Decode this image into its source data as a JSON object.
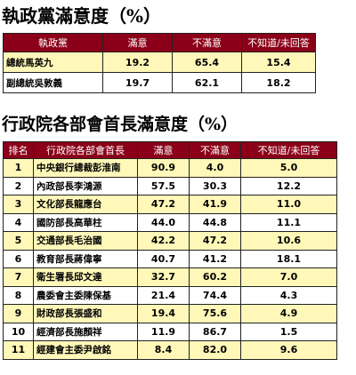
{
  "section1": {
    "title": "執政黨滿意度（%）",
    "headers": [
      "執政黨",
      "滿意",
      "不滿意",
      "不知道/未回答"
    ],
    "rows": [
      {
        "name": "總統馬英九",
        "satisfied": "19.2",
        "unsatisfied": "65.4",
        "unknown": "15.4"
      },
      {
        "name": "副總統吳敦義",
        "satisfied": "19.7",
        "unsatisfied": "62.1",
        "unknown": "18.2"
      }
    ]
  },
  "section2": {
    "title": "行政院各部會首長滿意度（%）",
    "headers": [
      "排名",
      "行政院各部會首長",
      "滿意",
      "不滿意",
      "不知道/未回答"
    ],
    "rows": [
      {
        "rank": "1",
        "name": "中央銀行總裁彭淮南",
        "satisfied": "90.9",
        "unsatisfied": "4.0",
        "unknown": "5.0"
      },
      {
        "rank": "2",
        "name": "內政部長李鴻源",
        "satisfied": "57.5",
        "unsatisfied": "30.3",
        "unknown": "12.2"
      },
      {
        "rank": "3",
        "name": "文化部長龍應台",
        "satisfied": "47.2",
        "unsatisfied": "41.9",
        "unknown": "11.0"
      },
      {
        "rank": "4",
        "name": "國防部長高華柱",
        "satisfied": "44.0",
        "unsatisfied": "44.8",
        "unknown": "11.1"
      },
      {
        "rank": "5",
        "name": "交通部長毛治國",
        "satisfied": "42.2",
        "unsatisfied": "47.2",
        "unknown": "10.6"
      },
      {
        "rank": "6",
        "name": "教育部長蔣偉寧",
        "satisfied": "40.7",
        "unsatisfied": "41.2",
        "unknown": "18.1"
      },
      {
        "rank": "7",
        "name": "衛生署長邱文達",
        "satisfied": "32.7",
        "unsatisfied": "60.2",
        "unknown": "7.0"
      },
      {
        "rank": "8",
        "name": "農委會主委陳保基",
        "satisfied": "21.4",
        "unsatisfied": "74.4",
        "unknown": "4.3"
      },
      {
        "rank": "9",
        "name": "財政部長張盛和",
        "satisfied": "19.4",
        "unsatisfied": "75.6",
        "unknown": "4.9"
      },
      {
        "rank": "10",
        "name": "經濟部長施顏祥",
        "satisfied": "11.9",
        "unsatisfied": "86.7",
        "unknown": "1.5"
      },
      {
        "rank": "11",
        "name": "經建會主委尹啟銘",
        "satisfied": "8.4",
        "unsatisfied": "82.0",
        "unknown": "9.6"
      }
    ]
  },
  "colors": {
    "header_bg": "#8b0018",
    "header_text": "#ffffff",
    "row_highlight": "#fff8b8",
    "row_plain": "#ffffff"
  }
}
